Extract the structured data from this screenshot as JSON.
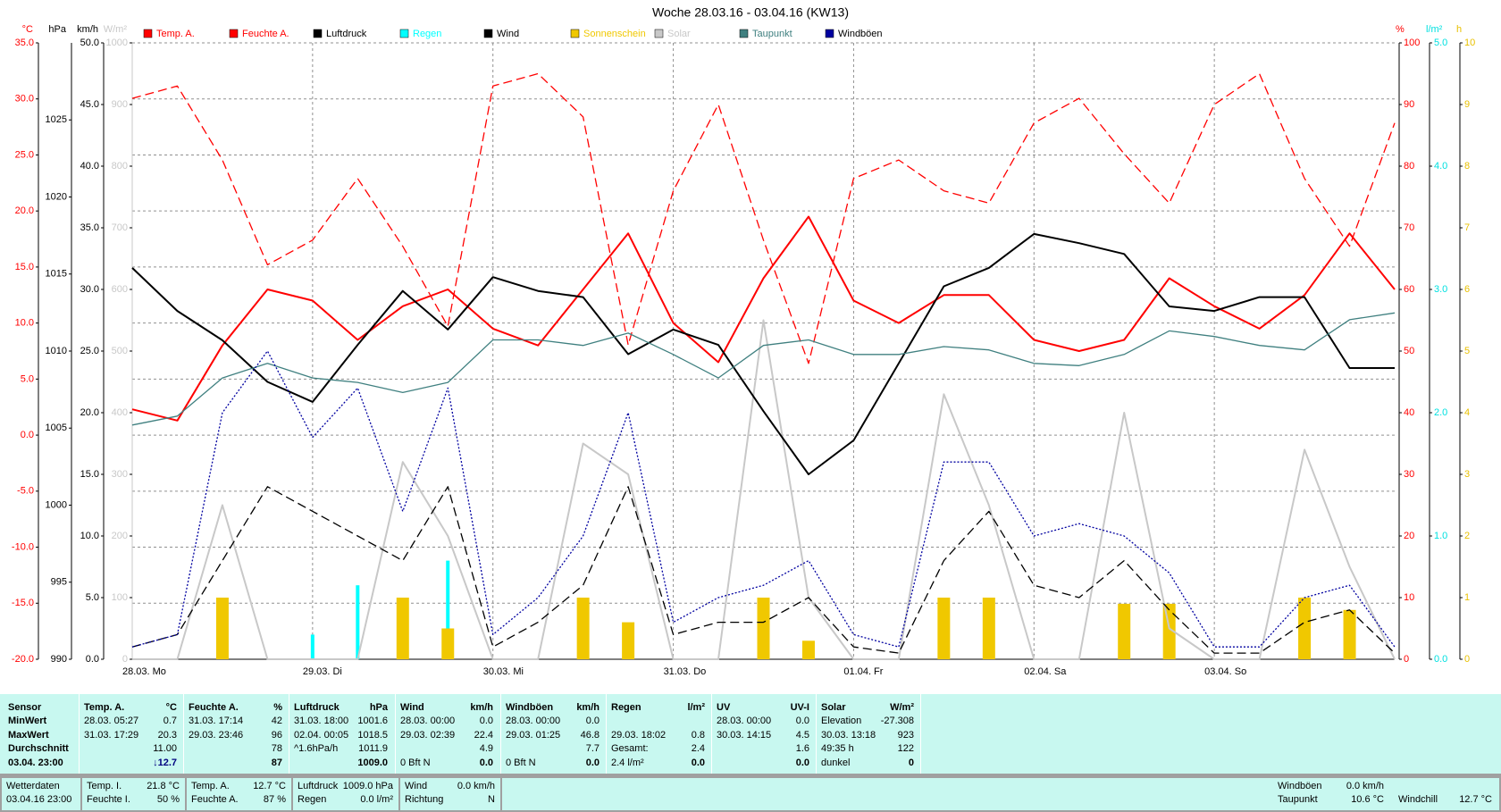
{
  "chart_data": {
    "type": "line",
    "title": "Woche 28.03.16 - 03.04.16 (KW13)",
    "x": [
      0,
      6,
      12,
      18,
      24,
      30,
      36,
      42,
      48,
      54,
      60,
      66,
      72,
      78,
      84,
      90,
      96,
      102,
      108,
      114,
      120,
      126,
      132,
      138,
      144,
      150,
      156,
      162,
      168
    ],
    "xlim": [
      0,
      168
    ],
    "xticks": [
      {
        "value": 0,
        "label": "28.03. Mo"
      },
      {
        "value": 24,
        "label": "29.03. Di"
      },
      {
        "value": 48,
        "label": "30.03. Mi"
      },
      {
        "value": 72,
        "label": "31.03. Do"
      },
      {
        "value": 96,
        "label": "01.04. Fr"
      },
      {
        "value": 120,
        "label": "02.04. Sa"
      },
      {
        "value": 144,
        "label": "03.04. So"
      }
    ],
    "grid": true,
    "axes": [
      {
        "label": "°C",
        "side": "left",
        "color": "#ff0000",
        "lim": [
          -20,
          35
        ],
        "ticks": [
          {
            "value": -20,
            "label": "-20.0"
          },
          {
            "value": -15,
            "label": "-15.0"
          },
          {
            "value": -10,
            "label": "-10.0"
          },
          {
            "value": -5,
            "label": "-5.0"
          },
          {
            "value": 0,
            "label": "0.0"
          },
          {
            "value": 5,
            "label": "5.0"
          },
          {
            "value": 10,
            "label": "10.0"
          },
          {
            "value": 15,
            "label": "15.0"
          },
          {
            "value": 20,
            "label": "20.0"
          },
          {
            "value": 25,
            "label": "25.0"
          },
          {
            "value": 30,
            "label": "30.0"
          },
          {
            "value": 35,
            "label": "35.0"
          }
        ]
      },
      {
        "label": "hPa",
        "side": "left",
        "color": "#000000",
        "lim": [
          990,
          1030
        ],
        "ticks": [
          990,
          995,
          1000,
          1005,
          1010,
          1015,
          1020,
          1025
        ]
      },
      {
        "label": "km/h",
        "side": "left",
        "color": "#000000",
        "lim": [
          0,
          50
        ],
        "ticks": [
          {
            "value": 0,
            "label": "0.0"
          },
          {
            "value": 5,
            "label": "5.0"
          },
          {
            "value": 10,
            "label": "10.0"
          },
          {
            "value": 15,
            "label": "15.0"
          },
          {
            "value": 20,
            "label": "20.0"
          },
          {
            "value": 25,
            "label": "25.0"
          },
          {
            "value": 30,
            "label": "30.0"
          },
          {
            "value": 35,
            "label": "35.0"
          },
          {
            "value": 40,
            "label": "40.0"
          },
          {
            "value": 45,
            "label": "45.0"
          },
          {
            "value": 50,
            "label": "50.0"
          }
        ]
      },
      {
        "label": "W/m²",
        "side": "left",
        "color": "#c8c8c8",
        "lim": [
          0,
          1000
        ],
        "ticks": [
          0,
          100,
          200,
          300,
          400,
          500,
          600,
          700,
          800,
          900,
          1000
        ]
      },
      {
        "label": "%",
        "side": "right",
        "color": "#ff0000",
        "lim": [
          0,
          100
        ],
        "ticks": [
          0,
          10,
          20,
          30,
          40,
          50,
          60,
          70,
          80,
          90,
          100
        ]
      },
      {
        "label": "l/m²",
        "side": "right",
        "color": "#00e0e0",
        "lim": [
          0,
          5
        ],
        "ticks": [
          {
            "value": 0,
            "label": "0.0"
          },
          {
            "value": 1,
            "label": "1.0"
          },
          {
            "value": 2,
            "label": "2.0"
          },
          {
            "value": 3,
            "label": "3.0"
          },
          {
            "value": 4,
            "label": "4.0"
          },
          {
            "value": 5,
            "label": "5.0"
          }
        ]
      },
      {
        "label": "h",
        "side": "right",
        "color": "#e8c000",
        "lim": [
          0,
          10
        ],
        "ticks": [
          0,
          1,
          2,
          3,
          4,
          5,
          6,
          7,
          8,
          9,
          10
        ]
      }
    ],
    "series": [
      {
        "name": "Temp. A.",
        "color": "#ff0000",
        "axis": "°C",
        "style": "solid",
        "values": [
          2.3,
          1.3,
          8,
          13,
          12,
          8.5,
          11.5,
          13,
          9.5,
          8,
          13,
          18,
          10,
          6.5,
          14,
          19.5,
          12,
          10,
          12.5,
          12.5,
          8.5,
          7.5,
          8.5,
          14,
          11.5,
          9.5,
          12.5,
          18,
          13
        ]
      },
      {
        "name": "Feuchte A.",
        "color": "#ff0000",
        "axis": "%",
        "style": "dashed",
        "values": [
          91,
          93,
          81,
          64,
          68,
          78,
          67,
          54,
          93,
          95,
          88,
          51,
          76,
          90,
          68,
          48,
          78,
          81,
          76,
          74,
          87,
          91,
          82,
          74,
          90,
          95,
          78,
          67,
          87
        ]
      },
      {
        "name": "Luftdruck",
        "color": "#000000",
        "axis": "hPa",
        "style": "solid",
        "values": [
          1015.4,
          1012.6,
          1010.7,
          1008,
          1006.7,
          1010.4,
          1013.9,
          1011.4,
          1014.8,
          1013.9,
          1013.5,
          1009.8,
          1011.4,
          1010.4,
          1006.1,
          1002,
          1004.2,
          1009.2,
          1014.2,
          1015.4,
          1017.6,
          1017,
          1016.3,
          1012.9,
          1012.6,
          1013.5,
          1013.5,
          1008.9,
          1008.9
        ]
      },
      {
        "name": "Regen",
        "color": "#00ffff",
        "axis": "l/m²",
        "style": "bar",
        "values": [
          0,
          0,
          0,
          0,
          0.2,
          0.6,
          0,
          0.8,
          0,
          0,
          0,
          0,
          0,
          0,
          0,
          0,
          0,
          0,
          0,
          0,
          0,
          0,
          0,
          0,
          0,
          0,
          0,
          0,
          0
        ]
      },
      {
        "name": "Wind",
        "color": "#000000",
        "axis": "km/h",
        "style": "dashed",
        "values": [
          1,
          2,
          8,
          14,
          12,
          10,
          8,
          14,
          1,
          3,
          6,
          14,
          2,
          3,
          3,
          5,
          1,
          0.5,
          8,
          12,
          6,
          5,
          8,
          4,
          0.5,
          0.5,
          3,
          4,
          0.5
        ]
      },
      {
        "name": "Sonnenschein",
        "color": "#f0c800",
        "axis": "h",
        "style": "bar",
        "values": [
          0,
          0,
          1,
          0,
          0,
          0,
          1,
          0.5,
          0,
          0,
          1,
          0.6,
          0,
          0,
          1,
          0.3,
          0,
          0,
          1,
          1,
          0,
          0,
          0.9,
          0.9,
          0,
          0,
          1,
          0.8,
          0
        ]
      },
      {
        "name": "Solar",
        "color": "#c8c8c8",
        "axis": "W/m²",
        "style": "solid",
        "values": [
          0,
          0,
          250,
          0,
          0,
          0,
          320,
          200,
          0,
          0,
          350,
          300,
          0,
          0,
          550,
          100,
          0,
          0,
          430,
          250,
          0,
          0,
          400,
          50,
          0,
          0,
          340,
          150,
          0
        ]
      },
      {
        "name": "Taupunkt",
        "color": "#408080",
        "axis": "°C",
        "style": "solid",
        "values": [
          0.9,
          1.7,
          5.1,
          6.4,
          5.1,
          4.7,
          3.8,
          4.7,
          8.5,
          8.5,
          8,
          9.1,
          7.2,
          5.1,
          8,
          8.5,
          7.2,
          7.2,
          7.9,
          7.6,
          6.4,
          6.2,
          7.2,
          9.3,
          8.8,
          8,
          7.6,
          10.3,
          10.9
        ]
      },
      {
        "name": "Windböen",
        "color": "#0000a0",
        "axis": "km/h",
        "style": "dotted",
        "values": [
          1,
          2,
          20,
          25,
          18,
          22,
          12,
          22,
          2,
          5,
          10,
          20,
          3,
          5,
          6,
          8,
          2,
          1,
          16,
          16,
          10,
          11,
          10,
          7,
          1,
          1,
          5,
          6,
          1
        ]
      }
    ]
  },
  "stats": {
    "row_labels": [
      "Sensor",
      "MinWert",
      "MaxWert",
      "Durchschnitt",
      "03.04. 23:00"
    ],
    "columns": [
      {
        "title": "Temp. A.",
        "unit": "°C",
        "rows": [
          [
            "28.03. 05:27",
            "0.7"
          ],
          [
            "31.03. 17:29",
            "20.3"
          ],
          [
            null,
            "11.00"
          ],
          [
            null,
            "↓12.7"
          ]
        ]
      },
      {
        "title": "Feuchte A.",
        "unit": "%",
        "rows": [
          [
            "31.03. 17:14",
            "42"
          ],
          [
            "29.03. 23:46",
            "96"
          ],
          [
            null,
            "78"
          ],
          [
            null,
            "87"
          ]
        ]
      },
      {
        "title": "Luftdruck",
        "unit": "hPa",
        "rows": [
          [
            "31.03. 18:00",
            "1001.6"
          ],
          [
            "02.04. 00:05",
            "1018.5"
          ],
          [
            "^1.6hPa/h",
            "1011.9"
          ],
          [
            null,
            "1009.0"
          ]
        ]
      },
      {
        "title": "Wind",
        "unit": "km/h",
        "rows": [
          [
            "28.03. 00:00",
            "0.0"
          ],
          [
            "29.03. 02:39",
            "22.4"
          ],
          [
            null,
            "4.9"
          ],
          [
            "0 Bft N",
            "0.0"
          ]
        ]
      },
      {
        "title": "Windböen",
        "unit": "km/h",
        "rows": [
          [
            "28.03. 00:00",
            "0.0"
          ],
          [
            "29.03. 01:25",
            "46.8"
          ],
          [
            null,
            "7.7"
          ],
          [
            "0 Bft N",
            "0.0"
          ]
        ]
      },
      {
        "title": "Regen",
        "unit": "l/m²",
        "rows": [
          [
            null,
            null
          ],
          [
            "29.03. 18:02",
            "0.8"
          ],
          [
            "Gesamt:",
            "2.4"
          ],
          [
            "2.4 l/m²",
            "0.0"
          ]
        ]
      },
      {
        "title": "UV",
        "unit": "UV-I",
        "rows": [
          [
            "28.03. 00:00",
            "0.0"
          ],
          [
            "30.03. 14:15",
            "4.5"
          ],
          [
            null,
            "1.6"
          ],
          [
            null,
            "0.0"
          ]
        ]
      },
      {
        "title": "Solar",
        "unit": "W/m²",
        "rows": [
          [
            "Elevation",
            "-27.308"
          ],
          [
            "30.03. 13:18",
            "923"
          ],
          [
            "49:35 h",
            "122"
          ],
          [
            "dunkel",
            "0"
          ]
        ]
      }
    ]
  },
  "footer": {
    "boxes": [
      {
        "rows": [
          [
            "Wetterdaten"
          ],
          [
            "03.04.16 23:00"
          ]
        ]
      },
      {
        "rows": [
          [
            "Temp. I.",
            "21.8 °C"
          ],
          [
            "Feuchte I.",
            "50 %"
          ]
        ]
      },
      {
        "rows": [
          [
            "Temp. A.",
            "12.7 °C"
          ],
          [
            "Feuchte A.",
            "87 %"
          ]
        ]
      },
      {
        "rows": [
          [
            "Luftdruck",
            "1009.0 hPa"
          ],
          [
            "Regen",
            "0.0 l/m²"
          ]
        ]
      },
      {
        "rows": [
          [
            "Wind",
            "0.0 km/h"
          ],
          [
            "Richtung",
            "N"
          ]
        ]
      },
      {
        "rows": [
          [
            "Windböen",
            "0.0 km/h"
          ],
          [
            "Taupunkt",
            "10.6 °C"
          ]
        ]
      },
      {
        "rows": [
          null,
          [
            "Windchill",
            "12.7 °C"
          ]
        ]
      }
    ]
  }
}
